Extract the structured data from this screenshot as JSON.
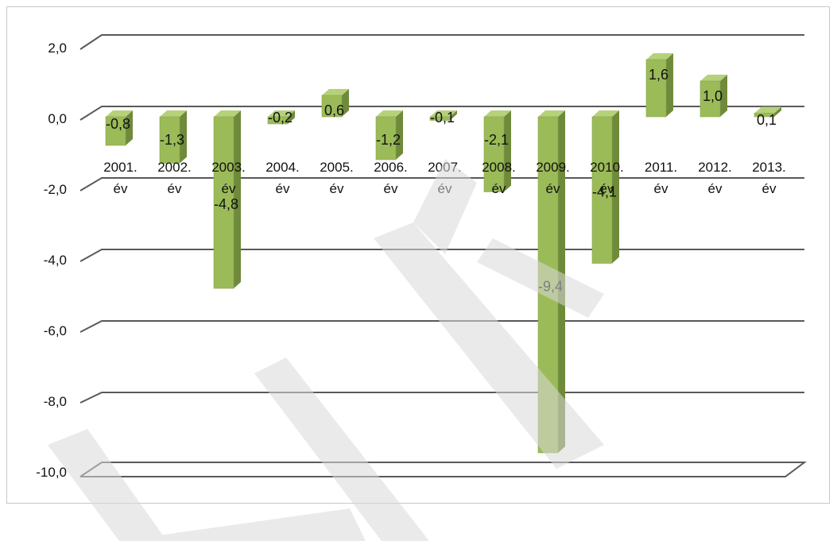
{
  "chart_data": {
    "type": "bar",
    "style": "3d-column",
    "categories": [
      "2001.\név",
      "2002.\név",
      "2003.\név",
      "2004.\név",
      "2005.\név",
      "2006.\név",
      "2007.\név",
      "2008.\név",
      "2009.\név",
      "2010.\név",
      "2011.\név",
      "2012.\név",
      "2013.\név"
    ],
    "values": [
      -0.8,
      -1.3,
      -4.8,
      -0.2,
      0.6,
      -1.2,
      -0.1,
      -2.1,
      -9.4,
      -4.1,
      1.6,
      1.0,
      0.1
    ],
    "data_labels": [
      "-0,8",
      "-1,3",
      "-4,8",
      "-0,2",
      "0,6",
      "-1,2",
      "-0,1",
      "-2,1",
      "-9,4",
      "-4,1",
      "1,6",
      "1,0",
      "0,1"
    ],
    "y_ticks": [
      2,
      0,
      -2,
      -4,
      -6,
      -8,
      -10
    ],
    "y_tick_labels": [
      "2,0",
      "0,0",
      "-2,0",
      "-4,0",
      "-6,0",
      "-8,0",
      "-10,0"
    ],
    "ylim": [
      -10,
      2
    ],
    "grid": true,
    "legend": "none",
    "title": "",
    "xlabel": "",
    "ylabel": ""
  },
  "colors": {
    "bar_front": "#9bbb59",
    "bar_side": "#6f8a3a",
    "bar_top": "#b5d27a",
    "gridline": "#595959",
    "watermark": "#d9d9d9"
  }
}
